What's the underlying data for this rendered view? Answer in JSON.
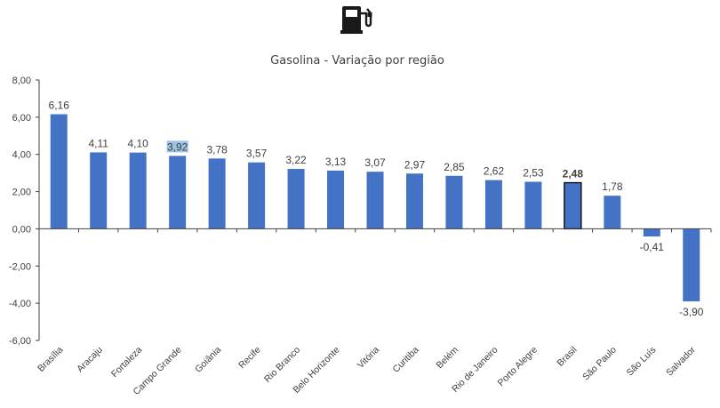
{
  "icon": "fuel-pump-icon",
  "chart_data": {
    "type": "bar",
    "title": "Gasolina - Variação por região",
    "xlabel": "",
    "ylabel": "",
    "categories": [
      "Brasília",
      "Aracaju",
      "Fortaleza",
      "Campo Grande",
      "Goiânia",
      "Recife",
      "Rio Branco",
      "Belo Horizonte",
      "Vitória",
      "Curitiba",
      "Belém",
      "Rio de Janeiro",
      "Porto Alegre",
      "Brasil",
      "São Paulo",
      "São Luís",
      "Salvador"
    ],
    "values": [
      6.16,
      4.11,
      4.1,
      3.92,
      3.78,
      3.57,
      3.22,
      3.13,
      3.07,
      2.97,
      2.85,
      2.62,
      2.53,
      2.48,
      1.78,
      -0.41,
      -3.9
    ],
    "value_labels": [
      "6,16",
      "4,11",
      "4,10",
      "3,92",
      "3,78",
      "3,57",
      "3,22",
      "3,13",
      "3,07",
      "2,97",
      "2,85",
      "2,62",
      "2,53",
      "2,48",
      "1,78",
      "-0,41",
      "-3,90"
    ],
    "ylim": [
      -6,
      8
    ],
    "yticks": [
      8,
      6,
      4,
      2,
      0,
      -2,
      -4,
      -6
    ],
    "ytick_labels": [
      "8,00",
      "6,00",
      "4,00",
      "2,00",
      "0,00",
      "-2,00",
      "-4,00",
      "-6,00"
    ],
    "highlight_category": "Brasil",
    "highlighted_label_category": "Campo Grande",
    "grid": false,
    "colors": {
      "bar": "#4472C4",
      "bar_highlight_border": "#000000",
      "label_highlight_bg": "#9DC3E6",
      "axis": "#404040",
      "text": "#404040"
    }
  }
}
